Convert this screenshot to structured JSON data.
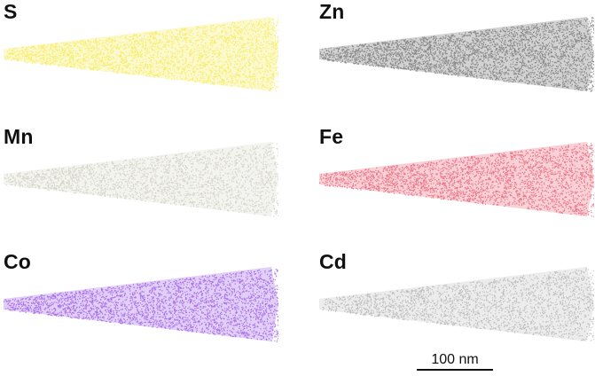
{
  "panels": [
    {
      "label": "S",
      "color": "#f3e631",
      "density": 0.55
    },
    {
      "label": "Zn",
      "color": "#7a7a7a",
      "density": 0.95
    },
    {
      "label": "Mn",
      "color": "#b8b8a2",
      "density": 0.3
    },
    {
      "label": "Fe",
      "color": "#e23d57",
      "density": 0.55
    },
    {
      "label": "Co",
      "color": "#8a3ee0",
      "density": 0.6
    },
    {
      "label": "Cd",
      "color": "#8e8e8e",
      "density": 0.28
    }
  ],
  "scalebar": {
    "label": "100 nm"
  }
}
